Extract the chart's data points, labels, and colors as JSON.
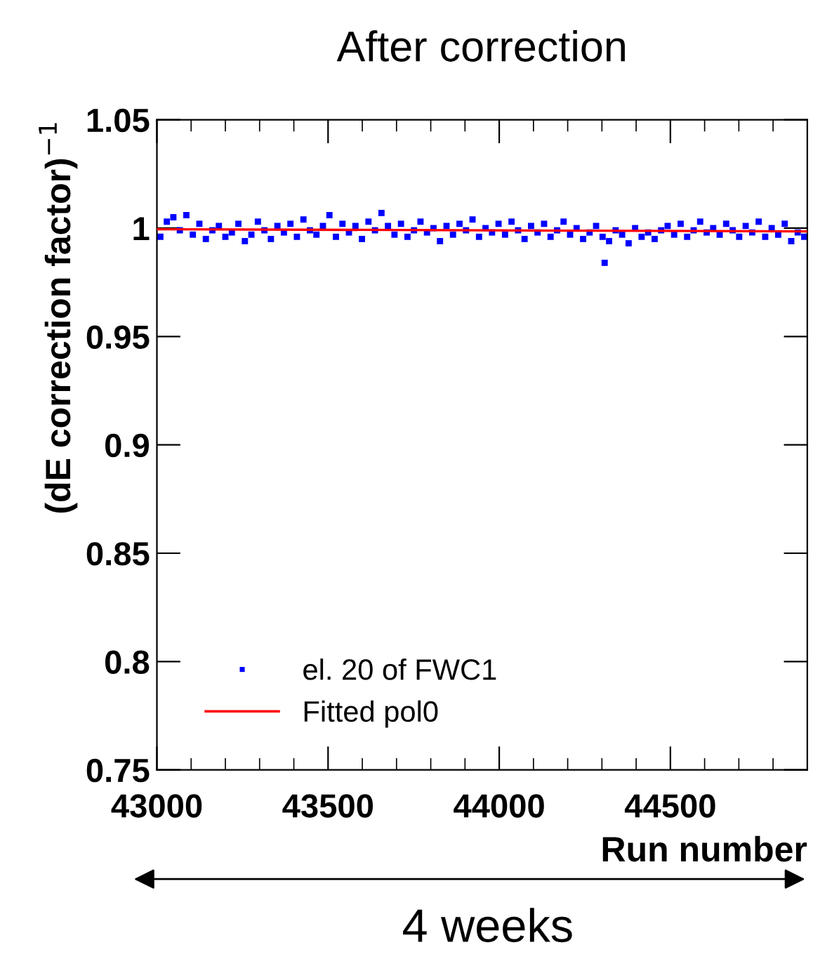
{
  "chart_data": {
    "type": "scatter",
    "title": "After correction",
    "xlabel": "Run number",
    "ylabel": "(dE correction factor)$^{−1}$",
    "xlim": [
      43000,
      44900
    ],
    "xticks": [
      43000,
      43500,
      44000,
      44500
    ],
    "ylim": [
      0.75,
      1.05
    ],
    "yticks": [
      0.75,
      0.8,
      0.85,
      0.9,
      0.95,
      1,
      1.05
    ],
    "legend": "bottom left",
    "grid": false,
    "annotations": [
      "4 weeks"
    ],
    "series": [
      {
        "name": "el. 20 of FWC1",
        "color": "#0000ff",
        "marker": "square",
        "x": [
          43010,
          43029,
          43048,
          43067,
          43086,
          43105,
          43124,
          43143,
          43162,
          43181,
          43200,
          43219,
          43238,
          43257,
          43276,
          43295,
          43314,
          43333,
          43352,
          43371,
          43390,
          43409,
          43428,
          43447,
          43466,
          43485,
          43504,
          43523,
          43542,
          43561,
          43580,
          43599,
          43618,
          43637,
          43656,
          43675,
          43694,
          43713,
          43732,
          43751,
          43770,
          43789,
          43808,
          43827,
          43846,
          43865,
          43884,
          43903,
          43922,
          43941,
          43960,
          43979,
          43998,
          44017,
          44036,
          44055,
          44074,
          44093,
          44112,
          44131,
          44150,
          44169,
          44188,
          44207,
          44226,
          44245,
          44264,
          44283,
          44302,
          44321,
          44340,
          44359,
          44378,
          44397,
          44416,
          44435,
          44454,
          44473,
          44492,
          44511,
          44530,
          44549,
          44568,
          44587,
          44606,
          44625,
          44644,
          44663,
          44682,
          44701,
          44720,
          44739,
          44758,
          44777,
          44796,
          44815,
          44834,
          44853,
          44872,
          44891
        ],
        "values": [
          0.996,
          1.003,
          1.005,
          0.999,
          1.006,
          0.997,
          1.002,
          0.995,
          0.999,
          1.001,
          0.996,
          0.998,
          1.002,
          0.994,
          0.997,
          1.003,
          0.999,
          0.995,
          1.001,
          0.998,
          1.002,
          0.996,
          1.004,
          0.999,
          0.997,
          1.001,
          1.006,
          0.996,
          1.002,
          0.998,
          1.001,
          0.995,
          1.003,
          0.999,
          1.007,
          1.001,
          0.997,
          1.002,
          0.996,
          0.999,
          1.003,
          0.998,
          1.0,
          0.994,
          1.001,
          0.997,
          1.002,
          0.999,
          1.004,
          0.996,
          1.0,
          0.998,
          1.002,
          0.997,
          1.003,
          0.999,
          0.995,
          1.001,
          0.998,
          1.002,
          0.996,
          0.999,
          1.003,
          0.997,
          1.0,
          0.995,
          0.998,
          1.001,
          0.996,
          0.994,
          0.999,
          0.997,
          0.993,
          1.0,
          0.996,
          0.998,
          0.995,
          0.999,
          1.001,
          0.997,
          1.002,
          0.996,
          0.999,
          1.003,
          0.998,
          1.0,
          0.997,
          1.002,
          0.999,
          0.996,
          1.001,
          0.998,
          1.003,
          0.996,
          1.0,
          0.997,
          1.002,
          0.994,
          0.998,
          0.996
        ]
      },
      {
        "name": null,
        "color": "#0000ff",
        "marker": "square",
        "x": [
          44308
        ],
        "values": [
          0.984
        ]
      },
      {
        "name": "Fitted pol0",
        "color": "#ff0000",
        "type": "line",
        "marker": "none",
        "x": [
          43000,
          44900
        ],
        "values": [
          0.9995,
          0.9985
        ]
      }
    ]
  }
}
